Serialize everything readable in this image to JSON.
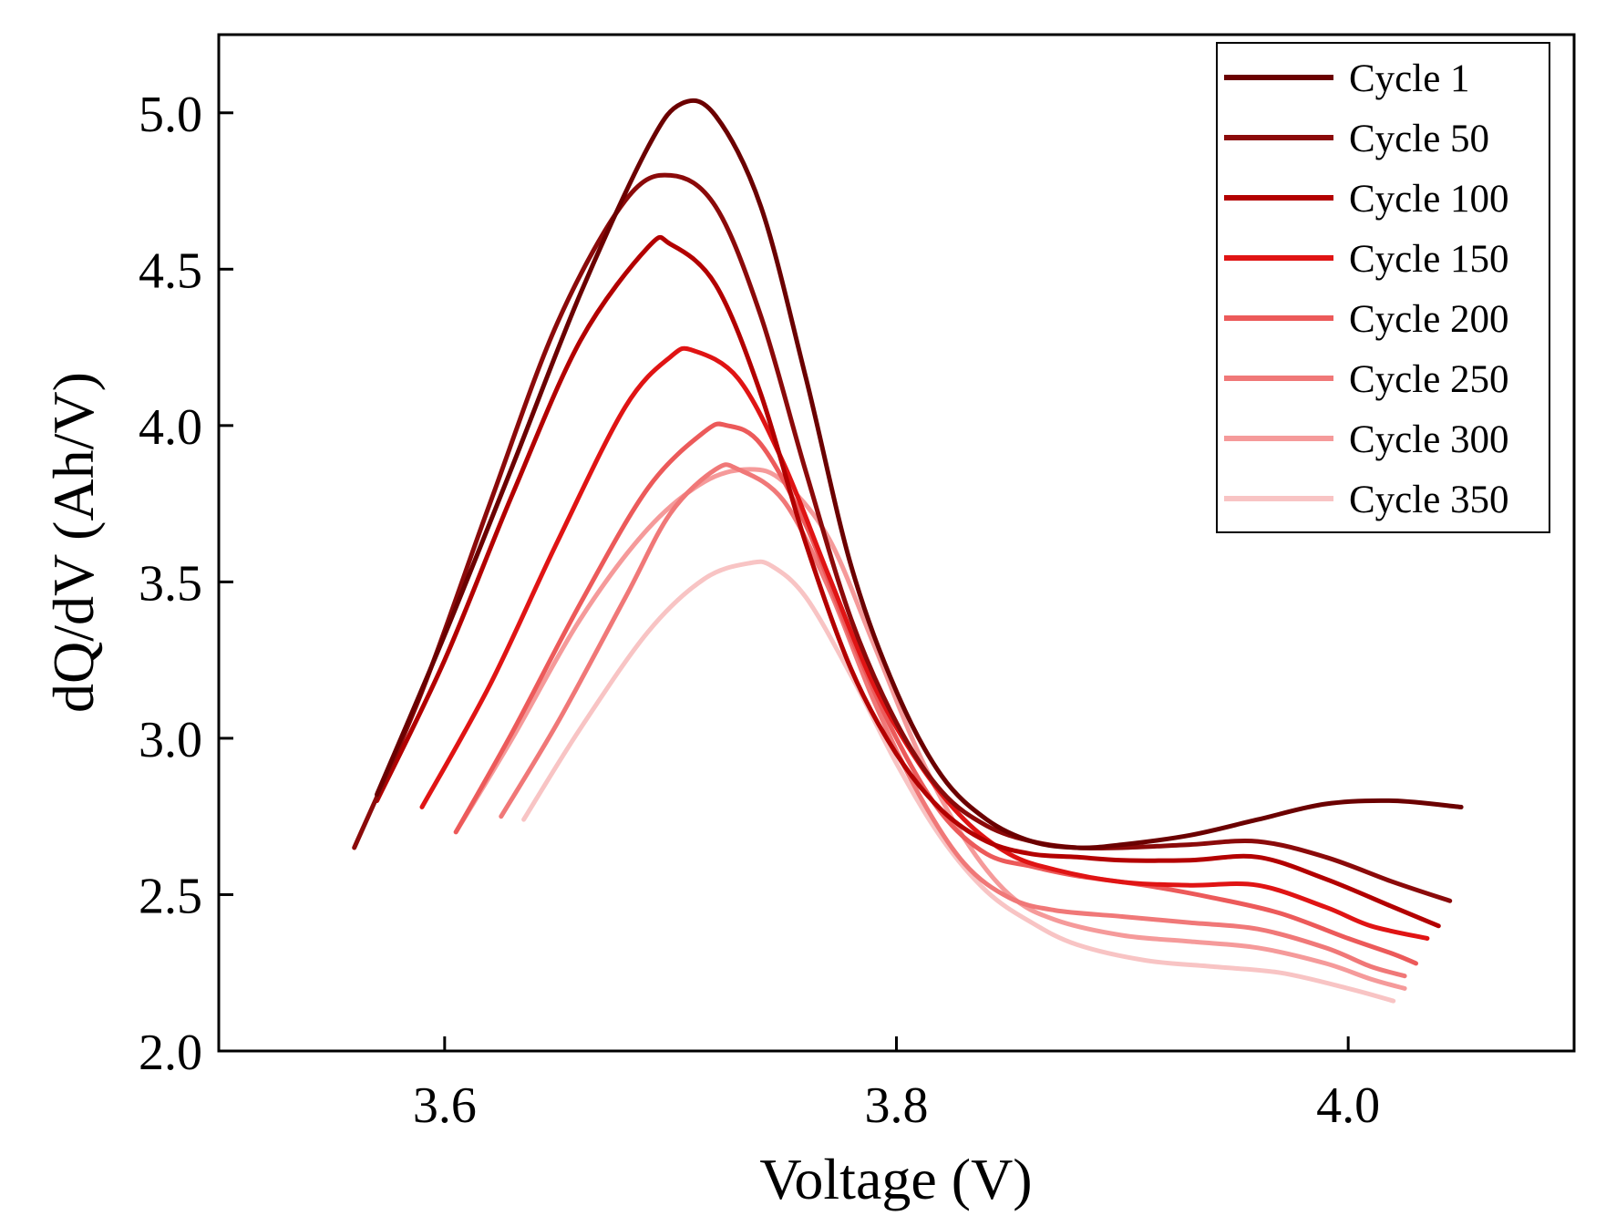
{
  "chart_data": {
    "type": "line",
    "title": "",
    "xlabel": "Voltage (V)",
    "ylabel": "dQ/dV (Ah/V)",
    "xlim": [
      3.5,
      4.1
    ],
    "ylim": [
      2.0,
      5.25
    ],
    "xticks": [
      3.6,
      3.8,
      4.0
    ],
    "xtick_labels": [
      "3.6",
      "3.8",
      "4.0"
    ],
    "yticks": [
      2.0,
      2.5,
      3.0,
      3.5,
      4.0,
      4.5,
      5.0
    ],
    "ytick_labels": [
      "2.0",
      "2.5",
      "3.0",
      "3.5",
      "4.0",
      "4.5",
      "5.0"
    ],
    "legend_position": "top-right",
    "series": [
      {
        "name": "Cycle 1",
        "color": "#6b0000",
        "x": [
          3.57,
          3.6,
          3.63,
          3.66,
          3.69,
          3.705,
          3.72,
          3.74,
          3.76,
          3.78,
          3.8,
          3.82,
          3.84,
          3.86,
          3.88,
          3.9,
          3.93,
          3.96,
          3.99,
          4.02,
          4.05
        ],
        "y": [
          2.82,
          3.33,
          3.87,
          4.42,
          4.89,
          5.03,
          4.99,
          4.7,
          4.15,
          3.55,
          3.15,
          2.88,
          2.74,
          2.67,
          2.65,
          2.66,
          2.69,
          2.74,
          2.79,
          2.8,
          2.78
        ]
      },
      {
        "name": "Cycle 50",
        "color": "#8b0a0a",
        "x": [
          3.56,
          3.59,
          3.62,
          3.65,
          3.68,
          3.7,
          3.72,
          3.74,
          3.76,
          3.78,
          3.8,
          3.82,
          3.84,
          3.86,
          3.88,
          3.9,
          3.93,
          3.96,
          3.99,
          4.02,
          4.045
        ],
        "y": [
          2.65,
          3.15,
          3.75,
          4.33,
          4.72,
          4.8,
          4.7,
          4.35,
          3.85,
          3.38,
          3.05,
          2.83,
          2.72,
          2.67,
          2.65,
          2.65,
          2.66,
          2.67,
          2.62,
          2.54,
          2.48
        ]
      },
      {
        "name": "Cycle 100",
        "color": "#b30000",
        "x": [
          3.57,
          3.6,
          3.63,
          3.66,
          3.69,
          3.7,
          3.72,
          3.74,
          3.76,
          3.78,
          3.8,
          3.82,
          3.84,
          3.86,
          3.88,
          3.9,
          3.93,
          3.96,
          3.99,
          4.02,
          4.04
        ],
        "y": [
          2.8,
          3.25,
          3.78,
          4.27,
          4.57,
          4.58,
          4.45,
          4.1,
          3.62,
          3.22,
          2.95,
          2.77,
          2.67,
          2.63,
          2.62,
          2.61,
          2.61,
          2.62,
          2.55,
          2.46,
          2.4
        ]
      },
      {
        "name": "Cycle 150",
        "color": "#e01414",
        "x": [
          3.59,
          3.62,
          3.65,
          3.68,
          3.7,
          3.71,
          3.73,
          3.75,
          3.77,
          3.79,
          3.81,
          3.83,
          3.85,
          3.87,
          3.9,
          3.93,
          3.96,
          3.99,
          4.01,
          4.035
        ],
        "y": [
          2.78,
          3.17,
          3.63,
          4.06,
          4.22,
          4.24,
          4.15,
          3.88,
          3.52,
          3.17,
          2.92,
          2.74,
          2.63,
          2.58,
          2.54,
          2.53,
          2.53,
          2.46,
          2.4,
          2.36
        ]
      },
      {
        "name": "Cycle 200",
        "color": "#ec5a5a",
        "x": [
          3.605,
          3.63,
          3.66,
          3.69,
          3.715,
          3.725,
          3.74,
          3.76,
          3.78,
          3.8,
          3.82,
          3.84,
          3.86,
          3.88,
          3.91,
          3.94,
          3.97,
          4.0,
          4.02,
          4.03
        ],
        "y": [
          2.7,
          3.02,
          3.43,
          3.8,
          3.98,
          4.0,
          3.94,
          3.68,
          3.32,
          3.0,
          2.76,
          2.63,
          2.59,
          2.56,
          2.53,
          2.49,
          2.44,
          2.36,
          2.31,
          2.28
        ]
      },
      {
        "name": "Cycle 250",
        "color": "#f07878",
        "x": [
          3.625,
          3.65,
          3.68,
          3.7,
          3.72,
          3.73,
          3.75,
          3.77,
          3.79,
          3.81,
          3.83,
          3.85,
          3.87,
          3.9,
          3.93,
          3.96,
          3.99,
          4.01,
          4.025
        ],
        "y": [
          2.75,
          3.05,
          3.45,
          3.72,
          3.86,
          3.86,
          3.76,
          3.48,
          3.12,
          2.82,
          2.6,
          2.49,
          2.45,
          2.43,
          2.41,
          2.39,
          2.33,
          2.27,
          2.24
        ]
      },
      {
        "name": "Cycle 300",
        "color": "#f59a9a",
        "x": [
          3.605,
          3.63,
          3.66,
          3.69,
          3.715,
          3.735,
          3.75,
          3.77,
          3.79,
          3.81,
          3.83,
          3.85,
          3.87,
          3.9,
          3.93,
          3.96,
          3.99,
          4.01,
          4.025
        ],
        "y": [
          2.7,
          3.0,
          3.38,
          3.67,
          3.82,
          3.86,
          3.82,
          3.64,
          3.3,
          2.95,
          2.68,
          2.5,
          2.42,
          2.37,
          2.35,
          2.33,
          2.28,
          2.23,
          2.2
        ]
      },
      {
        "name": "Cycle 350",
        "color": "#f8c4c4",
        "x": [
          3.635,
          3.66,
          3.69,
          3.715,
          3.735,
          3.745,
          3.76,
          3.78,
          3.8,
          3.82,
          3.84,
          3.86,
          3.88,
          3.91,
          3.94,
          3.97,
          4.0,
          4.02
        ],
        "y": [
          2.74,
          3.03,
          3.34,
          3.51,
          3.56,
          3.55,
          3.45,
          3.2,
          2.92,
          2.68,
          2.51,
          2.41,
          2.34,
          2.29,
          2.27,
          2.25,
          2.2,
          2.16
        ]
      }
    ]
  }
}
